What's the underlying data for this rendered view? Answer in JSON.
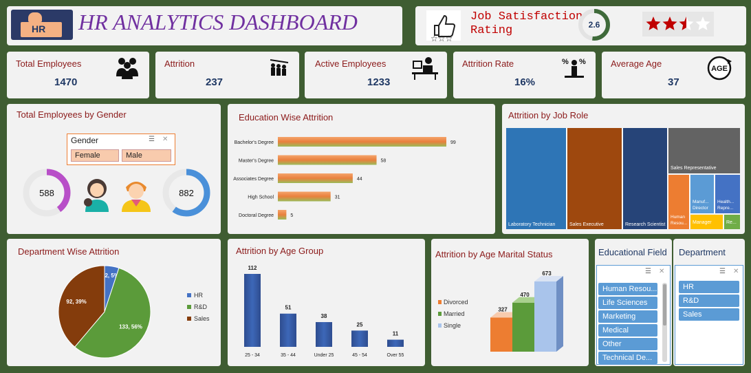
{
  "header": {
    "logo_text": "HR",
    "title": "HR ANALYTICS DASHBOARD",
    "satisfaction_label_1": "Job Satisfaction",
    "satisfaction_label_2": "Rating",
    "satisfaction_value": "2.6",
    "satisfaction_fraction": 0.52,
    "stars_filled": 2.6,
    "stars_total": 4
  },
  "kpis": [
    {
      "label": "Total Employees",
      "value": "1470",
      "icon": "people-group-icon"
    },
    {
      "label": "Attrition",
      "value": "237",
      "icon": "people-leaving-icon"
    },
    {
      "label": "Active Employees",
      "value": "1233",
      "icon": "desk-worker-icon"
    },
    {
      "label": "Attrition Rate",
      "value": "16%",
      "icon": "percent-person-icon"
    },
    {
      "label": "Average Age",
      "value": "37",
      "icon": "age-cycle-icon"
    }
  ],
  "gender": {
    "title": "Total Employees by Gender",
    "slicer_title": "Gender",
    "options": [
      "Female",
      "Male"
    ],
    "female_value": "588",
    "male_value": "882",
    "female_fraction": 0.4,
    "male_fraction": 0.6,
    "colors": {
      "female": "#b84fc8",
      "male": "#4a90d9"
    }
  },
  "education_attrition": {
    "title": "Education Wise Attrition",
    "chart_data": {
      "type": "bar",
      "orientation": "horizontal",
      "categories": [
        "Bachelor's Degree",
        "Master's Degree",
        "Associates Degree",
        "High School",
        "Doctoral Degree"
      ],
      "values": [
        99,
        58,
        44,
        31,
        5
      ]
    }
  },
  "job_role": {
    "title": "Attrition by Job Role",
    "chart_data": {
      "type": "treemap",
      "categories": [
        "Laboratory Technician",
        "Sales Executive",
        "Research Scientist",
        "Sales Representative",
        "Human Resou...",
        "Manuf... Director",
        "Health... Repre...",
        "Manager",
        "Re..."
      ],
      "colors": [
        "#2e75b6",
        "#9e480e",
        "#264478",
        "#636363",
        "#ed7d31",
        "#5b9bd5",
        "#4472c4",
        "#ffc000",
        "#70ad47"
      ]
    }
  },
  "department": {
    "title": "Department Wise Attrition",
    "chart_data": {
      "type": "pie",
      "categories": [
        "HR",
        "R&D",
        "Sales"
      ],
      "values": [
        12,
        133,
        92
      ],
      "labels": [
        "12, 5%",
        "133, 56%",
        "92, 39%"
      ],
      "colors": [
        "#4472c4",
        "#5b9b3a",
        "#843c0c"
      ]
    }
  },
  "age_group": {
    "title": "Attrition by Age Group",
    "chart_data": {
      "type": "bar",
      "categories": [
        "25 - 34",
        "35 - 44",
        "Under 25",
        "45 - 54",
        "Over 55"
      ],
      "values": [
        112,
        51,
        38,
        25,
        11
      ]
    }
  },
  "marital": {
    "title": "Attrition by Age Marital Status",
    "chart_data": {
      "type": "bar",
      "categories": [
        "Divorced",
        "Married",
        "Single"
      ],
      "values": [
        327,
        470,
        673
      ],
      "colors": [
        "#ed7d31",
        "#5b9b3a",
        "#a9c4eb"
      ]
    }
  },
  "edu_field_slicer": {
    "title": "Educational Field",
    "items": [
      "Human Resou...",
      "Life Sciences",
      "Marketing",
      "Medical",
      "Other",
      "Technical De..."
    ]
  },
  "dept_slicer": {
    "title": "Department",
    "items": [
      "HR",
      "R&D",
      "Sales"
    ]
  }
}
